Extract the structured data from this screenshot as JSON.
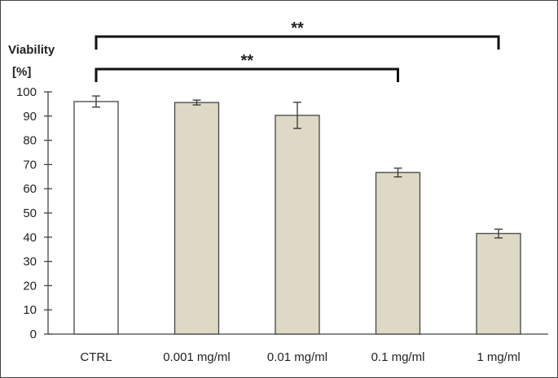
{
  "chart_data": {
    "type": "bar",
    "ylabel_line1": "Viability",
    "ylabel_line2": "[%]",
    "categories": [
      "CTRL",
      "0.001 mg/ml",
      "0.01 mg/ml",
      "0.1 mg/ml",
      "1 mg/ml"
    ],
    "values": [
      96.0,
      95.6,
      90.3,
      66.7,
      41.5
    ],
    "errors": [
      2.3,
      1.0,
      5.4,
      1.8,
      1.8
    ],
    "colors": [
      "#ffffff",
      "#ddd9c4",
      "#ddd9c4",
      "#ddd9c4",
      "#ddd9c4"
    ],
    "ylim": [
      0,
      100
    ],
    "yticks": [
      0,
      10,
      20,
      30,
      40,
      50,
      60,
      70,
      80,
      90,
      100
    ],
    "grid": false,
    "significance": [
      {
        "from": "CTRL",
        "to": "1 mg/ml",
        "label": "**"
      },
      {
        "from": "CTRL",
        "to": "0.1 mg/ml",
        "label": "**"
      }
    ]
  }
}
